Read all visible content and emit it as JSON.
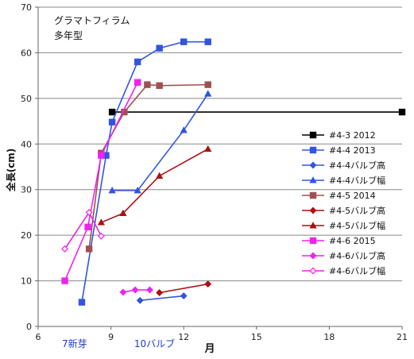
{
  "chart_data": {
    "type": "line",
    "title_lines": [
      "グラマトフィラム",
      "多年型"
    ],
    "ylabel": "全長(cm)",
    "xlabel": "月",
    "xlim": [
      6,
      21
    ],
    "ylim": [
      0,
      70
    ],
    "xticks": [
      6,
      9,
      12,
      15,
      18,
      21
    ],
    "yticks": [
      0,
      10,
      20,
      30,
      40,
      50,
      60,
      70
    ],
    "grid": "horizontal",
    "legend_position": "right",
    "annotations": [
      {
        "text": "7新芽",
        "x": 7.5,
        "color": "#1f3fbf"
      },
      {
        "text": "10バルブ",
        "x": 10.8,
        "color": "#1f3fbf"
      }
    ],
    "series": [
      {
        "name": "#4-3 2012",
        "color": "#000000",
        "marker": "square",
        "filled": true,
        "points": [
          [
            9.05,
            47
          ],
          [
            21,
            47
          ]
        ]
      },
      {
        "name": "#4-4 2013",
        "color": "#3355dd",
        "marker": "square",
        "filled": true,
        "points": [
          [
            7.8,
            5.3
          ],
          [
            8.8,
            37.5
          ],
          [
            9.05,
            44.8
          ],
          [
            10.1,
            58
          ],
          [
            11,
            61
          ],
          [
            12,
            62.4
          ],
          [
            13,
            62.4
          ]
        ]
      },
      {
        "name": "#4-4バルブ高",
        "color": "#3355dd",
        "marker": "diamond",
        "filled": true,
        "points": [
          [
            10.2,
            5.7
          ],
          [
            12,
            6.7
          ]
        ]
      },
      {
        "name": "#4-4バルブ幅",
        "color": "#3355dd",
        "marker": "triangle",
        "filled": true,
        "points": [
          [
            9.05,
            29.8
          ],
          [
            10.1,
            29.8
          ],
          [
            12,
            43
          ],
          [
            13,
            51
          ]
        ]
      },
      {
        "name": "#4-5 2014",
        "color": "#a05050",
        "marker": "square",
        "filled": true,
        "points": [
          [
            8.1,
            17
          ],
          [
            8.6,
            38
          ],
          [
            9.55,
            47
          ],
          [
            10.5,
            53
          ],
          [
            11,
            52.8
          ],
          [
            13,
            53
          ]
        ]
      },
      {
        "name": "#4-5バルブ高",
        "color": "#aa1111",
        "marker": "diamond",
        "filled": true,
        "points": [
          [
            11,
            7.4
          ],
          [
            13,
            9.3
          ]
        ]
      },
      {
        "name": "#4-5バルブ幅",
        "color": "#aa1111",
        "marker": "triangle",
        "filled": true,
        "points": [
          [
            8.6,
            22.8
          ],
          [
            9.5,
            24.8
          ],
          [
            11,
            33
          ],
          [
            13,
            38.9
          ]
        ]
      },
      {
        "name": "#4-6 2015",
        "color": "#ee22ee",
        "marker": "square",
        "filled": true,
        "points": [
          [
            7.1,
            10
          ],
          [
            8.05,
            21.8
          ],
          [
            8.6,
            37.5
          ],
          [
            10.1,
            53.5
          ]
        ]
      },
      {
        "name": "#4-6バルブ高",
        "color": "#ee22ee",
        "marker": "diamond",
        "filled": true,
        "points": [
          [
            9.5,
            7.5
          ],
          [
            10,
            8
          ],
          [
            10.6,
            8
          ]
        ]
      },
      {
        "name": "#4-6バルブ幅",
        "color": "#ee22ee",
        "marker": "diamond",
        "filled": false,
        "points": [
          [
            7.1,
            17
          ],
          [
            8.1,
            25
          ],
          [
            8.6,
            19.8
          ]
        ]
      }
    ]
  }
}
